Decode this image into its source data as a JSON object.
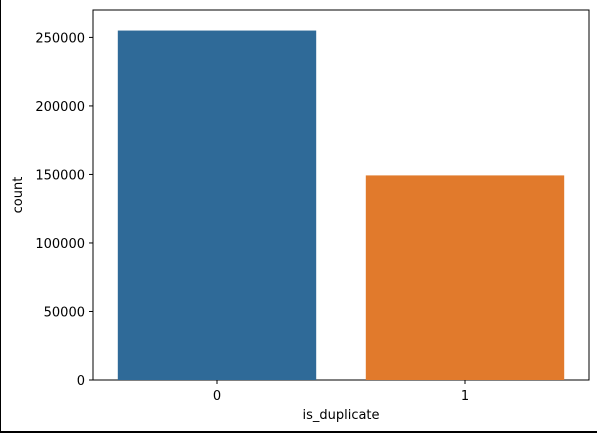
{
  "chart_data": {
    "type": "bar",
    "title": "",
    "xlabel": "is_duplicate",
    "ylabel": "count",
    "categories": [
      "0",
      "1"
    ],
    "values": [
      255000,
      149300
    ],
    "colors": [
      "#2f6a98",
      "#e17a2c"
    ],
    "ylim": [
      0,
      270000
    ],
    "yticks": [
      0,
      50000,
      100000,
      150000,
      200000,
      250000
    ],
    "ytick_labels": [
      "0",
      "50000",
      "100000",
      "150000",
      "200000",
      "250000"
    ],
    "grid": false,
    "legend": "none"
  }
}
